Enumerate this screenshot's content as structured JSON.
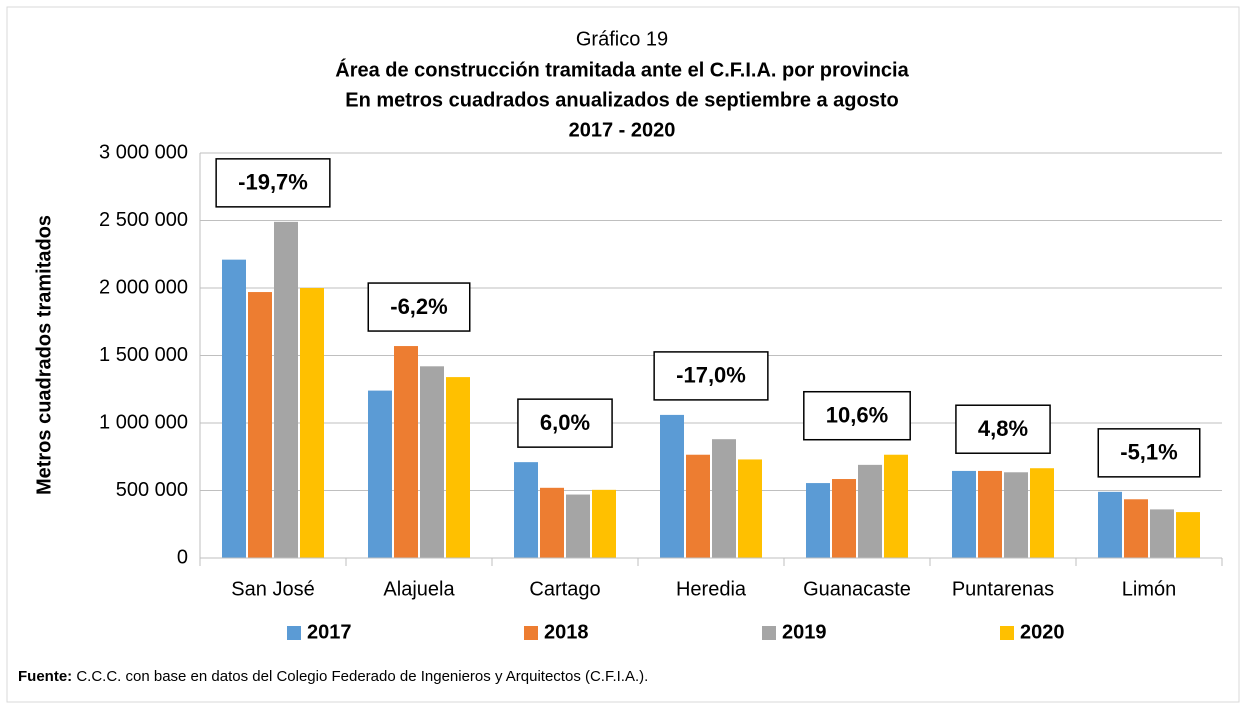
{
  "chart_data": {
    "type": "bar",
    "title": "Gráfico 19",
    "subtitle": [
      "Área de construcción tramitada ante el C.F.I.A. por provincia",
      "En metros cuadrados anualizados de septiembre a agosto",
      "2017 - 2020"
    ],
    "y_label": "Metros cuadrados tramitados",
    "categories": [
      "San José",
      "Alajuela",
      "Cartago",
      "Heredia",
      "Guanacaste",
      "Puntarenas",
      "Limón"
    ],
    "series": [
      {
        "name": "2017",
        "color": "#5b9bd5",
        "values": [
          2210000,
          1240000,
          710000,
          1060000,
          555000,
          645000,
          490000
        ]
      },
      {
        "name": "2018",
        "color": "#ed7d31",
        "values": [
          1970000,
          1570000,
          520000,
          765000,
          585000,
          645000,
          435000
        ]
      },
      {
        "name": "2019",
        "color": "#a5a5a5",
        "values": [
          2490000,
          1420000,
          470000,
          880000,
          690000,
          635000,
          360000
        ]
      },
      {
        "name": "2020",
        "color": "#ffc000",
        "values": [
          2000000,
          1340000,
          505000,
          730000,
          765000,
          665000,
          340000
        ]
      }
    ],
    "annotations": [
      "-19,7%",
      "-6,2%",
      "6,0%",
      "-17,0%",
      "10,6%",
      "4,8%",
      "-5,1%"
    ],
    "ylim": [
      0,
      3000000
    ],
    "yticks": [
      0,
      {
        "value": 500000,
        "label": "500 000"
      },
      {
        "value": 1000000,
        "label": "1 000 000"
      },
      {
        "value": 1500000,
        "label": "1 500 000"
      },
      {
        "value": 2000000,
        "label": "2 000 000"
      },
      {
        "value": 2500000,
        "label": "2 500 000"
      },
      {
        "value": 3000000,
        "label": "3 000 000"
      }
    ],
    "grid": true,
    "legend": "bottom",
    "source_label": "Fuente:",
    "source_text": "C.C.C. con base en datos del Colegio Federado de Ingenieros y Arquitectos (C.F.I.A.)."
  }
}
